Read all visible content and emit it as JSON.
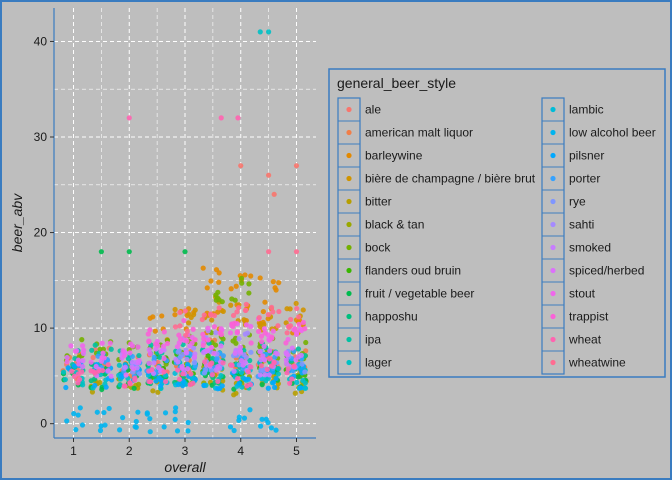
{
  "chart_data": {
    "type": "scatter",
    "title": "",
    "xlabel": "overall",
    "ylabel": "beer_abv",
    "xlim": [
      0.65,
      5.35
    ],
    "ylim": [
      -1.5,
      43.5
    ],
    "x_ticks": [
      1,
      2,
      3,
      4,
      5
    ],
    "y_ticks": [
      0,
      10,
      20,
      30,
      40
    ],
    "x_minor_ticks": [
      1.5,
      2.5,
      3.5,
      4.5
    ],
    "y_minor_ticks": [
      5,
      15,
      25,
      35
    ],
    "grid": true,
    "grid_style": "white dashed",
    "background_color": "#bebebe",
    "legend": {
      "title": "general_beer_style",
      "placement": "right",
      "columns": 2,
      "entries": [
        {
          "name": "ale",
          "color": "#F8766D"
        },
        {
          "name": "american malt liquor",
          "color": "#F17E48"
        },
        {
          "name": "barleywine",
          "color": "#E38900"
        },
        {
          "name": "bière de champagne / bière brut",
          "color": "#D09400"
        },
        {
          "name": "bitter",
          "color": "#B79F00"
        },
        {
          "name": "black & tan",
          "color": "#9AA800"
        },
        {
          "name": "bock",
          "color": "#74B000"
        },
        {
          "name": "flanders oud bruin",
          "color": "#39B600"
        },
        {
          "name": "fruit / vegetable beer",
          "color": "#00BB4E"
        },
        {
          "name": "happoshu",
          "color": "#00BF7D"
        },
        {
          "name": "ipa",
          "color": "#00C1A3"
        },
        {
          "name": "lager",
          "color": "#00C0C4"
        },
        {
          "name": "lambic",
          "color": "#00BCD8"
        },
        {
          "name": "low alcohol beer",
          "color": "#00B4EF"
        },
        {
          "name": "pilsner",
          "color": "#00A8FF"
        },
        {
          "name": "porter",
          "color": "#35A2FF"
        },
        {
          "name": "rye",
          "color": "#7F96FF"
        },
        {
          "name": "sahti",
          "color": "#A58AFF"
        },
        {
          "name": "smoked",
          "color": "#C77CFF"
        },
        {
          "name": "spiced/herbed",
          "color": "#DC71FA"
        },
        {
          "name": "stout",
          "color": "#EF67EB"
        },
        {
          "name": "trappist",
          "color": "#FA62D8"
        },
        {
          "name": "wheat",
          "color": "#FF64B0"
        },
        {
          "name": "wheatwine",
          "color": "#FF6C91"
        }
      ]
    },
    "series": [
      {
        "name": "ale",
        "points": [
          [
            1.0,
            5.2
          ],
          [
            1.5,
            7.0
          ],
          [
            2.0,
            6.0
          ],
          [
            2.5,
            5.5
          ],
          [
            3.0,
            6.0
          ],
          [
            3.5,
            6.5
          ],
          [
            4.0,
            6.0
          ],
          [
            4.5,
            5.8
          ],
          [
            5.0,
            6.2
          ],
          [
            4.0,
            27.0
          ],
          [
            4.6,
            24.0
          ],
          [
            5.0,
            27.0
          ],
          [
            4.5,
            26.0
          ]
        ]
      },
      {
        "name": "american malt liquor",
        "points": [
          [
            1.0,
            6.0
          ],
          [
            1.5,
            5.5
          ],
          [
            2.0,
            5.8
          ],
          [
            2.5,
            6.2
          ],
          [
            3.0,
            7.0
          ],
          [
            3.5,
            7.5
          ],
          [
            4.0,
            6.8
          ],
          [
            4.5,
            7.2
          ],
          [
            5.0,
            6.5
          ]
        ]
      },
      {
        "name": "barleywine",
        "points": [
          [
            2.5,
            10.0
          ],
          [
            3.0,
            11.0
          ],
          [
            3.5,
            10.5
          ],
          [
            4.0,
            11.5
          ],
          [
            4.5,
            11.0
          ],
          [
            5.0,
            10.5
          ],
          [
            3.5,
            15.0
          ],
          [
            4.0,
            15.0
          ],
          [
            4.5,
            14.0
          ]
        ]
      },
      {
        "name": "bière de champagne / bière brut",
        "points": [
          [
            3.0,
            11.5
          ],
          [
            3.5,
            12.0
          ],
          [
            4.0,
            11.5
          ],
          [
            4.5,
            11.0
          ],
          [
            5.0,
            11.5
          ]
        ]
      },
      {
        "name": "bitter",
        "points": [
          [
            1.5,
            4.5
          ],
          [
            2.0,
            4.8
          ],
          [
            2.5,
            4.5
          ],
          [
            3.0,
            4.2
          ],
          [
            3.5,
            4.5
          ],
          [
            4.0,
            4.3
          ],
          [
            4.5,
            4.5
          ],
          [
            5.0,
            4.4
          ]
        ]
      },
      {
        "name": "black & tan",
        "points": [
          [
            2.0,
            5.0
          ],
          [
            3.0,
            5.5
          ],
          [
            3.5,
            5.2
          ],
          [
            4.0,
            5.4
          ],
          [
            4.5,
            5.5
          ],
          [
            5.0,
            5.3
          ]
        ]
      },
      {
        "name": "bock",
        "points": [
          [
            1.0,
            7.5
          ],
          [
            1.5,
            8.0
          ],
          [
            2.0,
            7.2
          ],
          [
            2.5,
            7.5
          ],
          [
            3.0,
            8.0
          ],
          [
            3.5,
            8.5
          ],
          [
            4.0,
            8.2
          ],
          [
            4.5,
            8.0
          ],
          [
            5.0,
            7.8
          ],
          [
            4.0,
            14.0
          ],
          [
            3.5,
            13.5
          ]
        ]
      },
      {
        "name": "flanders oud bruin",
        "points": [
          [
            2.5,
            6.0
          ],
          [
            3.0,
            6.5
          ],
          [
            3.5,
            6.2
          ],
          [
            4.0,
            6.0
          ],
          [
            4.5,
            6.4
          ],
          [
            5.0,
            6.1
          ]
        ]
      },
      {
        "name": "fruit / vegetable beer",
        "points": [
          [
            1.0,
            5.0
          ],
          [
            1.5,
            4.8
          ],
          [
            2.0,
            5.0
          ],
          [
            2.5,
            5.5
          ],
          [
            3.0,
            5.0
          ],
          [
            3.5,
            5.2
          ],
          [
            4.0,
            4.8
          ],
          [
            4.5,
            5.0
          ],
          [
            5.0,
            5.1
          ],
          [
            1.5,
            18.0
          ],
          [
            2.0,
            18.0
          ],
          [
            3.0,
            18.0
          ]
        ]
      },
      {
        "name": "happoshu",
        "points": [
          [
            1.5,
            5.5
          ],
          [
            2.5,
            5.3
          ],
          [
            3.0,
            5.5
          ],
          [
            3.5,
            5.4
          ]
        ]
      },
      {
        "name": "ipa",
        "points": [
          [
            1.0,
            6.5
          ],
          [
            1.5,
            7.0
          ],
          [
            2.0,
            6.8
          ],
          [
            2.5,
            7.0
          ],
          [
            3.0,
            7.2
          ],
          [
            3.5,
            7.5
          ],
          [
            4.0,
            7.0
          ],
          [
            4.5,
            7.2
          ],
          [
            5.0,
            7.1
          ]
        ]
      },
      {
        "name": "lager",
        "points": [
          [
            1.0,
            4.5
          ],
          [
            1.5,
            4.8
          ],
          [
            2.0,
            5.0
          ],
          [
            2.5,
            4.8
          ],
          [
            3.0,
            5.0
          ],
          [
            3.5,
            5.0
          ],
          [
            4.0,
            4.9
          ],
          [
            4.5,
            5.0
          ],
          [
            5.0,
            4.8
          ],
          [
            4.35,
            41.0
          ],
          [
            4.5,
            41.0
          ]
        ]
      },
      {
        "name": "lambic",
        "points": [
          [
            2.5,
            5.0
          ],
          [
            3.0,
            5.2
          ],
          [
            3.5,
            5.0
          ],
          [
            4.0,
            5.1
          ],
          [
            4.5,
            5.3
          ],
          [
            5.0,
            5.0
          ]
        ]
      },
      {
        "name": "low alcohol beer",
        "points": [
          [
            1.0,
            0.5
          ],
          [
            1.5,
            0.5
          ],
          [
            2.0,
            0.5
          ],
          [
            2.5,
            0.4
          ],
          [
            3.0,
            0.5
          ],
          [
            4.0,
            0.5
          ],
          [
            4.5,
            0.5
          ]
        ]
      },
      {
        "name": "pilsner",
        "points": [
          [
            1.0,
            5.0
          ],
          [
            1.5,
            4.9
          ],
          [
            2.0,
            5.0
          ],
          [
            2.5,
            5.0
          ],
          [
            3.0,
            5.0
          ],
          [
            3.5,
            4.8
          ],
          [
            4.0,
            5.0
          ],
          [
            4.5,
            5.0
          ],
          [
            5.0,
            5.0
          ]
        ]
      },
      {
        "name": "porter",
        "points": [
          [
            1.5,
            6.0
          ],
          [
            2.0,
            6.2
          ],
          [
            2.5,
            6.0
          ],
          [
            3.0,
            6.5
          ],
          [
            3.5,
            6.3
          ],
          [
            4.0,
            6.4
          ],
          [
            4.5,
            6.2
          ],
          [
            5.0,
            6.5
          ]
        ]
      },
      {
        "name": "rye",
        "points": [
          [
            2.0,
            6.5
          ],
          [
            3.0,
            6.8
          ],
          [
            3.5,
            6.6
          ],
          [
            4.0,
            6.5
          ],
          [
            4.5,
            6.7
          ],
          [
            5.0,
            6.6
          ]
        ]
      },
      {
        "name": "sahti",
        "points": [
          [
            3.0,
            8.0
          ],
          [
            3.5,
            8.5
          ],
          [
            4.0,
            8.2
          ]
        ]
      },
      {
        "name": "smoked",
        "points": [
          [
            2.0,
            6.0
          ],
          [
            2.5,
            6.5
          ],
          [
            3.0,
            6.2
          ],
          [
            3.5,
            6.8
          ],
          [
            4.0,
            6.5
          ],
          [
            4.5,
            6.4
          ],
          [
            5.0,
            6.3
          ]
        ]
      },
      {
        "name": "spiced/herbed",
        "points": [
          [
            1.0,
            6.5
          ],
          [
            1.5,
            6.0
          ],
          [
            2.0,
            6.3
          ],
          [
            2.5,
            6.8
          ],
          [
            3.0,
            7.0
          ],
          [
            3.5,
            7.2
          ],
          [
            4.0,
            7.0
          ],
          [
            4.5,
            7.5
          ],
          [
            5.0,
            7.2
          ]
        ]
      },
      {
        "name": "stout",
        "points": [
          [
            1.0,
            7.0
          ],
          [
            1.5,
            7.5
          ],
          [
            2.0,
            7.2
          ],
          [
            2.5,
            8.0
          ],
          [
            3.0,
            8.5
          ],
          [
            3.5,
            9.0
          ],
          [
            4.0,
            9.5
          ],
          [
            4.5,
            10.0
          ],
          [
            5.0,
            9.8
          ]
        ]
      },
      {
        "name": "trappist",
        "points": [
          [
            2.5,
            9.0
          ],
          [
            3.0,
            9.5
          ],
          [
            3.5,
            9.0
          ],
          [
            4.0,
            9.5
          ],
          [
            4.5,
            9.2
          ],
          [
            5.0,
            9.4
          ]
        ]
      },
      {
        "name": "wheat",
        "points": [
          [
            1.0,
            5.0
          ],
          [
            1.5,
            5.2
          ],
          [
            2.0,
            5.0
          ],
          [
            2.5,
            5.4
          ],
          [
            3.0,
            5.3
          ],
          [
            3.5,
            5.5
          ],
          [
            4.0,
            5.2
          ],
          [
            4.5,
            5.5
          ],
          [
            5.0,
            5.3
          ],
          [
            2.0,
            32.0
          ],
          [
            3.65,
            32.0
          ],
          [
            3.95,
            32.0
          ]
        ]
      },
      {
        "name": "wheatwine",
        "points": [
          [
            3.0,
            10.5
          ],
          [
            3.5,
            11.0
          ],
          [
            4.0,
            11.2
          ],
          [
            4.5,
            11.0
          ],
          [
            5.0,
            10.8
          ],
          [
            4.5,
            18.0
          ],
          [
            5.0,
            18.0
          ]
        ]
      }
    ]
  }
}
